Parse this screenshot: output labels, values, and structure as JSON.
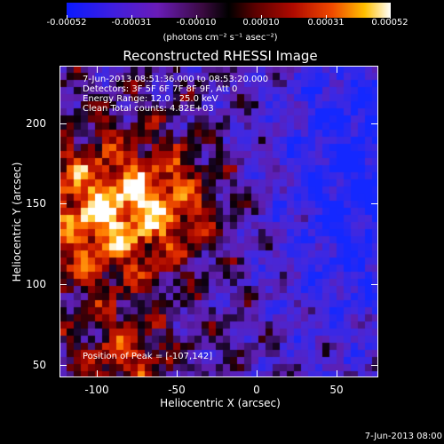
{
  "colorbar": {
    "ticks": [
      "-0.00052",
      "-0.00031",
      "-0.00010",
      "0.00010",
      "0.00031",
      "0.00052"
    ],
    "units": "(photons cm⁻² s⁻¹ asec⁻²)",
    "colors": [
      "#0a1aff",
      "#6a1cb8",
      "#000000",
      "#b00a00",
      "#f04a00",
      "#ffc000",
      "#ffffff"
    ]
  },
  "title": "Reconstructed RHESSI Image",
  "info": {
    "line1": "7-Jun-2013 08:51:36.000 to 08:53:20.000",
    "line2": "Detectors: 3F 5F 6F 7F 8F 9F, Att 0",
    "line3": "Energy Range: 12.0 - 25.0 keV",
    "line4": "Clean      Total counts: 4.82E+03"
  },
  "peak": "Position of Peak = [-107,142]",
  "axes": {
    "xlabel": "Heliocentric X (arcsec)",
    "ylabel": "Heliocentric Y (arcsec)",
    "xticks": [
      "-100",
      "-50",
      "0",
      "50"
    ],
    "yticks": [
      "200",
      "150",
      "100",
      "50"
    ],
    "xrange": [
      -115,
      75
    ],
    "yrange": [
      45,
      230
    ]
  },
  "datestamp": "7-Jun-2013 08:00"
}
